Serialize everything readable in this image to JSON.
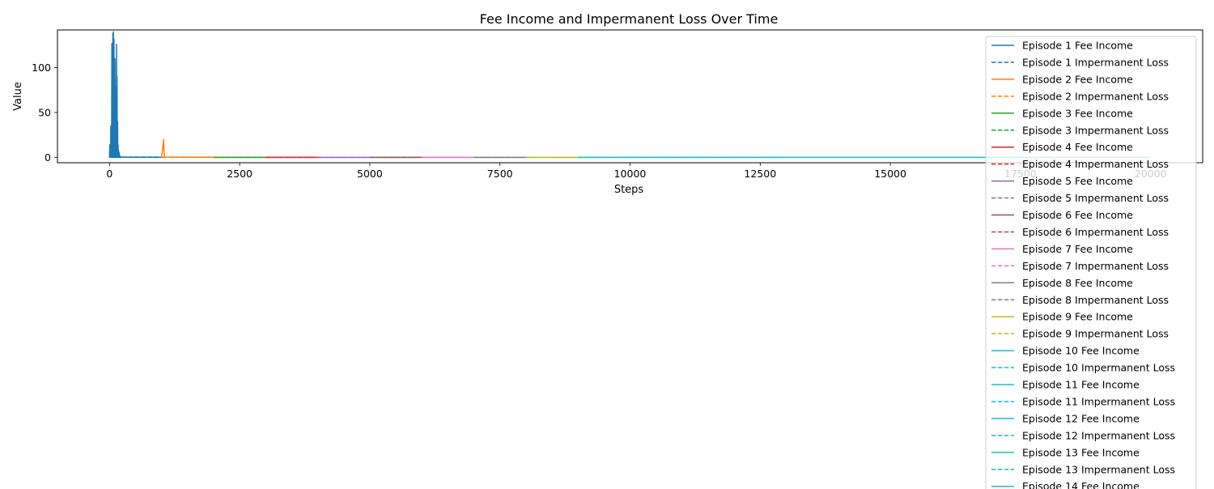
{
  "chart_data": {
    "type": "line",
    "title": "Fee Income and Impermanent Loss Over Time",
    "xlabel": "Steps",
    "ylabel": "Value",
    "xlim": [
      -1000,
      21000
    ],
    "ylim": [
      -6,
      142
    ],
    "x_ticks": [
      0,
      2500,
      5000,
      7500,
      10000,
      12500,
      15000,
      17500,
      20000
    ],
    "x_tick_labels": [
      "0",
      "2500",
      "5000",
      "7500",
      "10000",
      "12500",
      "15000",
      "17500",
      "20000"
    ],
    "y_ticks": [
      0,
      50,
      100
    ],
    "y_tick_labels": [
      "0",
      "50",
      "100"
    ],
    "legend_position": "upper-right",
    "grid": false,
    "series": [
      {
        "name": "Episode 1 Fee Income",
        "color": "#1f77b4",
        "style": "solid",
        "x": [
          0,
          5,
          10,
          15,
          20,
          25,
          30,
          35,
          40,
          45,
          50,
          55,
          60,
          65,
          70,
          75,
          80,
          85,
          90,
          95,
          100,
          105,
          110,
          115,
          120,
          125,
          130,
          135,
          140,
          145,
          150,
          155,
          160,
          165,
          170,
          175,
          180,
          185,
          190,
          195,
          200,
          205,
          210,
          215,
          220,
          230,
          250,
          300,
          400,
          500,
          600,
          700,
          800,
          900,
          1000
        ],
        "y": [
          0,
          14,
          0,
          8,
          0,
          35,
          0,
          20,
          0,
          127,
          0,
          60,
          0,
          138,
          0,
          140,
          0,
          132,
          0,
          70,
          0,
          110,
          0,
          80,
          0,
          55,
          0,
          126,
          0,
          90,
          0,
          40,
          0,
          14,
          0,
          8,
          0,
          5,
          0,
          2,
          0,
          1,
          0,
          0.5,
          0,
          0.3,
          0.2,
          0.2,
          0.2,
          0.1,
          0.1,
          0.1,
          0.1,
          0.1,
          0.1
        ]
      },
      {
        "name": "Episode 1 Impermanent Loss",
        "color": "#1f77b4",
        "style": "dashed",
        "x": [
          0,
          1000
        ],
        "y": [
          0.3,
          0.3
        ]
      },
      {
        "name": "Episode 2 Fee Income",
        "color": "#ff7f0e",
        "style": "solid",
        "x": [
          1000,
          1040,
          1050,
          1060,
          1100,
          1200,
          1500,
          2000
        ],
        "y": [
          0,
          20,
          3,
          0.5,
          0.3,
          0.2,
          0.1,
          0.1
        ]
      },
      {
        "name": "Episode 2 Impermanent Loss",
        "color": "#ff7f0e",
        "style": "dashed",
        "x": [
          1000,
          2000
        ],
        "y": [
          0.2,
          0.2
        ]
      },
      {
        "name": "Episode 3 Fee Income",
        "color": "#2ca02c",
        "style": "solid",
        "x": [
          2000,
          3000
        ],
        "y": [
          0,
          0
        ]
      },
      {
        "name": "Episode 3 Impermanent Loss",
        "color": "#2ca02c",
        "style": "dashed",
        "x": [
          2000,
          3000
        ],
        "y": [
          0,
          0
        ]
      },
      {
        "name": "Episode 4 Fee Income",
        "color": "#d62728",
        "style": "solid",
        "x": [
          3000,
          4000
        ],
        "y": [
          0,
          0
        ]
      },
      {
        "name": "Episode 4 Impermanent Loss",
        "color": "#d62728",
        "style": "dashed",
        "x": [
          3000,
          4000
        ],
        "y": [
          0,
          0
        ]
      },
      {
        "name": "Episode 5 Fee Income",
        "color": "#9467bd",
        "style": "solid",
        "x": [
          4000,
          5000
        ],
        "y": [
          0,
          0
        ]
      },
      {
        "name": "Episode 5 Impermanent Loss",
        "color": "#9467bd",
        "style": "dashed",
        "x": [
          4000,
          5000
        ],
        "y": [
          0,
          0
        ]
      },
      {
        "name": "Episode 6 Fee Income",
        "color": "#8c564b",
        "style": "solid",
        "x": [
          5000,
          6000
        ],
        "y": [
          0,
          0
        ]
      },
      {
        "name": "Episode 6 Impermanent Loss",
        "color": "#8c564b",
        "style": "dashed",
        "x": [
          5000,
          6000
        ],
        "y": [
          0,
          0
        ]
      },
      {
        "name": "Episode 7 Fee Income",
        "color": "#e377c2",
        "style": "solid",
        "x": [
          6000,
          7000
        ],
        "y": [
          0,
          0
        ]
      },
      {
        "name": "Episode 7 Impermanent Loss",
        "color": "#e377c2",
        "style": "dashed",
        "x": [
          6000,
          7000
        ],
        "y": [
          0,
          0
        ]
      },
      {
        "name": "Episode 8 Fee Income",
        "color": "#7f7f7f",
        "style": "solid",
        "x": [
          7000,
          8000
        ],
        "y": [
          0,
          0
        ]
      },
      {
        "name": "Episode 8 Impermanent Loss",
        "color": "#7f7f7f",
        "style": "dashed",
        "x": [
          7000,
          8000
        ],
        "y": [
          0,
          0
        ]
      },
      {
        "name": "Episode 9 Fee Income",
        "color": "#bcbd22",
        "style": "solid",
        "x": [
          8000,
          9000
        ],
        "y": [
          0,
          0
        ]
      },
      {
        "name": "Episode 9 Impermanent Loss",
        "color": "#bcbd22",
        "style": "dashed",
        "x": [
          8000,
          9000
        ],
        "y": [
          0,
          0
        ]
      },
      {
        "name": "Episode 10 Fee Income",
        "color": "#17becf",
        "style": "solid",
        "x": [
          9000,
          10000
        ],
        "y": [
          0,
          0
        ]
      },
      {
        "name": "Episode 10 Impermanent Loss",
        "color": "#17becf",
        "style": "dashed",
        "x": [
          9000,
          10000
        ],
        "y": [
          0,
          0
        ]
      },
      {
        "name": "Episode 11 Fee Income",
        "color": "#17becf",
        "style": "solid",
        "x": [
          10000,
          11000
        ],
        "y": [
          0,
          0
        ]
      },
      {
        "name": "Episode 11 Impermanent Loss",
        "color": "#17becf",
        "style": "dashed",
        "x": [
          10000,
          11000
        ],
        "y": [
          0,
          0
        ]
      },
      {
        "name": "Episode 12 Fee Income",
        "color": "#17becf",
        "style": "solid",
        "x": [
          11000,
          12000
        ],
        "y": [
          0,
          0
        ]
      },
      {
        "name": "Episode 12 Impermanent Loss",
        "color": "#17becf",
        "style": "dashed",
        "x": [
          11000,
          12000
        ],
        "y": [
          0,
          0
        ]
      },
      {
        "name": "Episode 13 Fee Income",
        "color": "#17becf",
        "style": "solid",
        "x": [
          12000,
          13000
        ],
        "y": [
          0,
          0
        ]
      },
      {
        "name": "Episode 13 Impermanent Loss",
        "color": "#17becf",
        "style": "dashed",
        "x": [
          12000,
          13000
        ],
        "y": [
          0,
          0
        ]
      },
      {
        "name": "Episode 14 Fee Income",
        "color": "#17becf",
        "style": "solid",
        "x": [
          13000,
          20000
        ],
        "y": [
          0,
          0
        ]
      }
    ]
  }
}
